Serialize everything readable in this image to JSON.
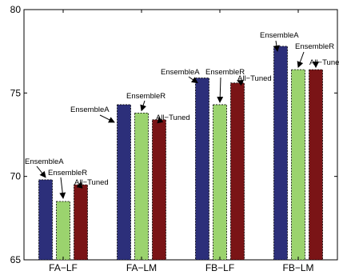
{
  "chart_data": {
    "type": "bar",
    "categories": [
      "FA−LF",
      "FA−LM",
      "FB−LF",
      "FB−LM"
    ],
    "series": [
      {
        "values": [
          69.8,
          74.3,
          75.9,
          77.8
        ],
        "color": "#2c2f7a"
      },
      {
        "values": [
          68.5,
          73.8,
          74.3,
          76.4
        ],
        "color": "#9bd36e"
      },
      {
        "values": [
          69.5,
          73.4,
          75.6,
          76.4
        ],
        "color": "#7a1416"
      }
    ],
    "ylim": [
      65,
      80
    ],
    "yticks": [
      65,
      70,
      75,
      80
    ],
    "grid": false,
    "annotations": [
      {
        "text": "EnsembleA",
        "category": 0,
        "series": 0
      },
      {
        "text": "EnsembleR",
        "category": 0,
        "series": 1
      },
      {
        "text": "All−Tuned",
        "category": 0,
        "series": 2
      },
      {
        "text": "EnsembleA",
        "category": 1,
        "series": 0
      },
      {
        "text": "EnsembleR",
        "category": 1,
        "series": 1
      },
      {
        "text": "All−Tuned",
        "category": 1,
        "series": 2
      },
      {
        "text": "EnsembleA",
        "category": 2,
        "series": 0
      },
      {
        "text": "EnsembleR",
        "category": 2,
        "series": 1
      },
      {
        "text": "All−Tuned",
        "category": 2,
        "series": 2
      },
      {
        "text": "EnsembleA",
        "category": 3,
        "series": 0
      },
      {
        "text": "EnsembleR",
        "category": 3,
        "series": 1
      },
      {
        "text": "All−Tune",
        "category": 3,
        "series": 2
      }
    ]
  }
}
